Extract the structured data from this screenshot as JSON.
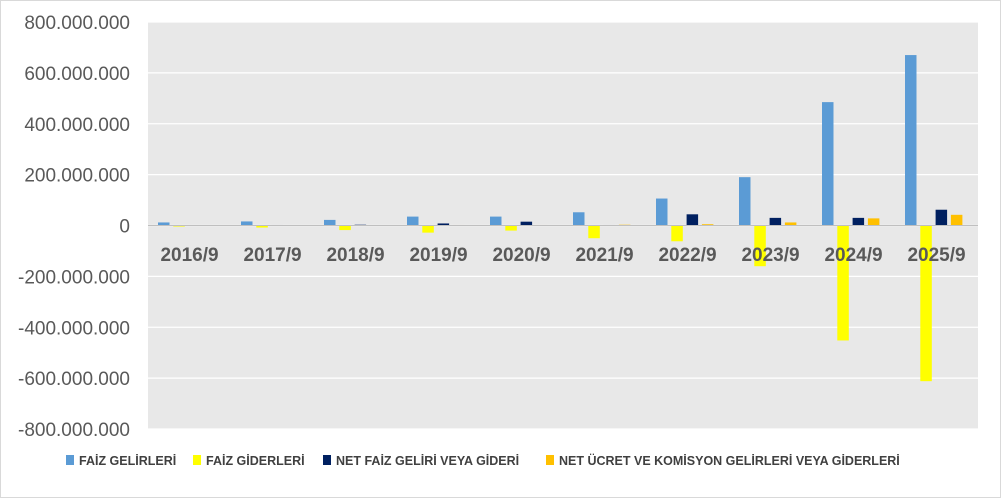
{
  "chart_data": {
    "type": "bar",
    "title": "",
    "xlabel": "",
    "ylabel": "",
    "ylim": [
      -800000000,
      800000000
    ],
    "yticks": [
      800000000,
      600000000,
      400000000,
      200000000,
      0,
      -200000000,
      -400000000,
      -600000000,
      -800000000
    ],
    "ytick_labels": [
      "800.000.000",
      "600.000.000",
      "400.000.000",
      "200.000.000",
      "0",
      "-200.000.000",
      "-400.000.000",
      "-600.000.000",
      "-800.000.000"
    ],
    "categories": [
      "2016/9",
      "2017/9",
      "2018/9",
      "2019/9",
      "2020/9",
      "2021/9",
      "2022/9",
      "2023/9",
      "2024/9",
      "2025/9"
    ],
    "grid": true,
    "plot_background": "#e8e8e8",
    "legend_position": "bottom",
    "series": [
      {
        "name": "FAİZ GELİRLERİ",
        "color": "#5b9bd5",
        "values": [
          12000000,
          16000000,
          22000000,
          35000000,
          35000000,
          52000000,
          106000000,
          190000000,
          485000000,
          670000000
        ]
      },
      {
        "name": "FAİZ GİDERLERİ",
        "color": "#ffff00",
        "values": [
          -4000000,
          -8000000,
          -18000000,
          -28000000,
          -20000000,
          -50000000,
          -62000000,
          -160000000,
          -452000000,
          -612000000
        ]
      },
      {
        "name": "NET FAİZ GELİRİ VEYA GİDERİ",
        "color": "#002060",
        "values": [
          1000000,
          2000000,
          3000000,
          8000000,
          15000000,
          2000000,
          44000000,
          30000000,
          30000000,
          62000000
        ]
      },
      {
        "name": "NET ÜCRET VE KOMİSYON GELİRLERİ VEYA GİDERLERİ",
        "color": "#ffc000",
        "values": [
          500000,
          1000000,
          1500000,
          2000000,
          2000000,
          3000000,
          5000000,
          12000000,
          28000000,
          42000000
        ]
      }
    ]
  }
}
